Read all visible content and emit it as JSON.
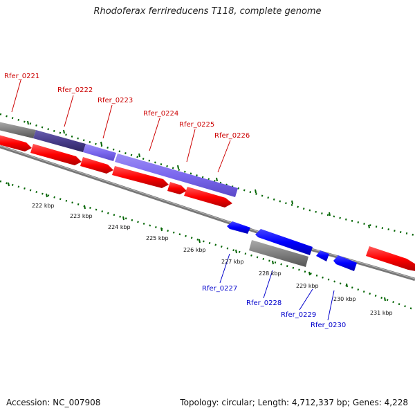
{
  "title": "Rhodoferax ferrireducens T118, complete genome",
  "footer": {
    "accession": "Accession: NC_007908",
    "summary": "Topology: circular; Length: 4,712,337 bp; Genes: 4,228"
  },
  "colors": {
    "cds_forward": "#ff0000",
    "cds_reverse": "#0000ff",
    "gene_gray": "#808080",
    "highlight": "#7b68ee",
    "highlight_dark": "#483d8b",
    "gc_ticks": "#006400",
    "label_forward": "#cc0000",
    "label_reverse": "#0000cc"
  },
  "scale_labels": [
    "222 kbp",
    "223 kbp",
    "224 kbp",
    "225 kbp",
    "226 kbp",
    "227 kbp",
    "228 kbp",
    "229 kbp",
    "230 kbp",
    "231 kbp"
  ],
  "gene_labels_forward": [
    "Rfer_0221",
    "Rfer_0222",
    "Rfer_0223",
    "Rfer_0224",
    "Rfer_0225",
    "Rfer_0226"
  ],
  "gene_labels_reverse": [
    "Rfer_0227",
    "Rfer_0228",
    "Rfer_0229",
    "Rfer_0230"
  ]
}
